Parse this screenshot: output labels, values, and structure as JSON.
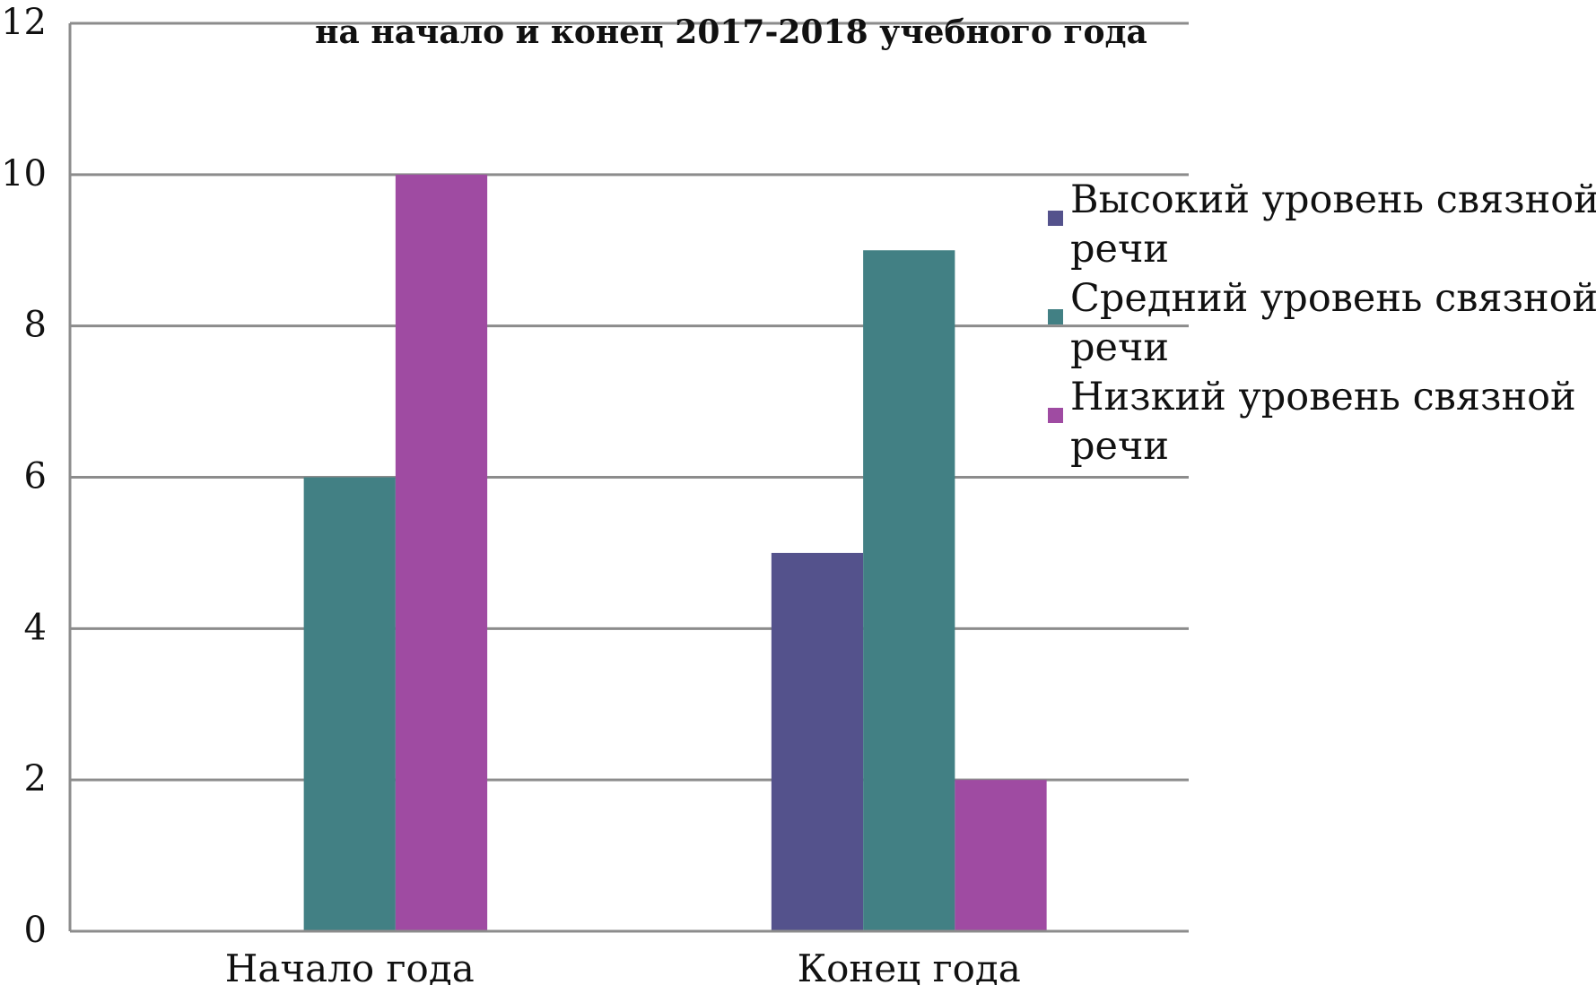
{
  "chart_data": {
    "type": "bar",
    "subtitle": "на начало и конец 2017-2018 учебного года",
    "categories": [
      "Начало года",
      "Конец года"
    ],
    "series": [
      {
        "name": "Высокий уровень связной речи",
        "values": [
          0,
          5
        ],
        "color": "#54528c"
      },
      {
        "name": "Средний уровень связной речи",
        "values": [
          6,
          9
        ],
        "color": "#428084"
      },
      {
        "name": "Низкий уровень связной речи",
        "values": [
          10,
          2
        ],
        "color": "#9f4ba2"
      }
    ],
    "ylim": [
      0,
      12
    ],
    "yticks": [
      0,
      2,
      4,
      6,
      8,
      10,
      12
    ],
    "grid": true,
    "legend_position": "right"
  }
}
